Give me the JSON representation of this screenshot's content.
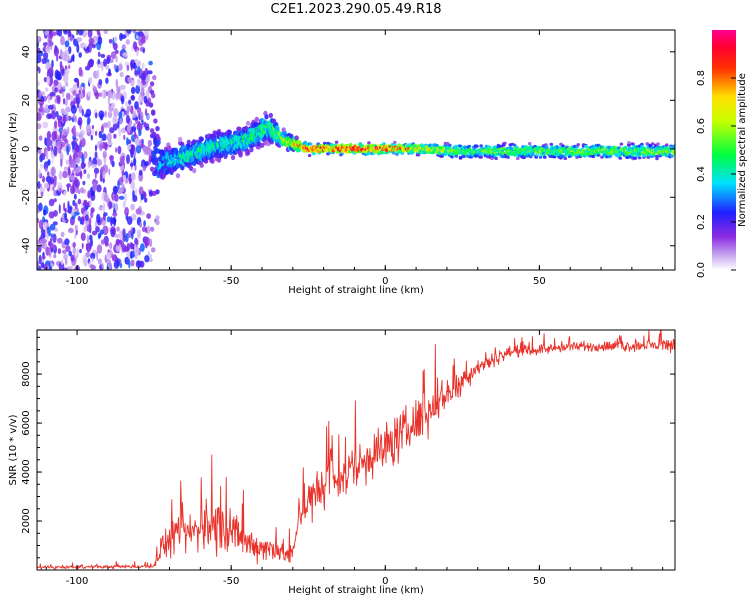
{
  "chart_data": [
    {
      "type": "heatmap",
      "title": "C2E1.2023.290.05.49.R18",
      "xlabel": "Height of straight line (km)",
      "ylabel": "Frequency (Hz)",
      "xlim": [
        -113,
        94
      ],
      "ylim": [
        -50,
        49
      ],
      "xticks": [
        -100,
        -50,
        0,
        50
      ],
      "yticks": [
        -40,
        -20,
        0,
        20,
        40
      ],
      "colorbar": {
        "label": "Normalized spectral amplitude",
        "range": [
          0,
          1
        ],
        "ticks": [
          0.0,
          0.2,
          0.4,
          0.6,
          0.8
        ],
        "colormap": "rainbow (white-purple-blue-cyan-green-yellow-red-magenta)"
      },
      "ridge": [
        {
          "x": -113,
          "y": 0,
          "amp": 0.15,
          "spread": 45
        },
        {
          "x": -76,
          "y": 0,
          "amp": 0.2,
          "spread": 40
        },
        {
          "x": -73,
          "y": -6,
          "amp": 0.35,
          "spread": 5
        },
        {
          "x": -65,
          "y": -3,
          "amp": 0.45,
          "spread": 4
        },
        {
          "x": -55,
          "y": 1,
          "amp": 0.45,
          "spread": 4
        },
        {
          "x": -45,
          "y": 4,
          "amp": 0.45,
          "spread": 4
        },
        {
          "x": -38,
          "y": 9,
          "amp": 0.5,
          "spread": 4
        },
        {
          "x": -32,
          "y": 3,
          "amp": 0.7,
          "spread": 2
        },
        {
          "x": -25,
          "y": 0,
          "amp": 0.9,
          "spread": 1.5
        },
        {
          "x": 0,
          "y": 0,
          "amp": 0.95,
          "spread": 1.5
        },
        {
          "x": 10,
          "y": 0,
          "amp": 0.75,
          "spread": 1.5
        },
        {
          "x": 25,
          "y": -1,
          "amp": 0.55,
          "spread": 2
        },
        {
          "x": 94,
          "y": -1,
          "amp": 0.6,
          "spread": 2
        }
      ]
    },
    {
      "type": "line",
      "title": "",
      "xlabel": "Height of straight line (km)",
      "ylabel": "SNR (10 * v/v)",
      "xlim": [
        -113,
        94
      ],
      "ylim": [
        0,
        9800
      ],
      "xticks": [
        -100,
        -50,
        0,
        50
      ],
      "yticks": [
        2000,
        4000,
        6000,
        8000
      ],
      "color": "#e8322a",
      "trend": [
        {
          "x": -113,
          "y": 100,
          "noise": 80
        },
        {
          "x": -75,
          "y": 150,
          "noise": 100
        },
        {
          "x": -72,
          "y": 1100,
          "noise": 800
        },
        {
          "x": -60,
          "y": 1700,
          "noise": 1300
        },
        {
          "x": -55,
          "y": 1900,
          "noise": 1500
        },
        {
          "x": -45,
          "y": 1100,
          "noise": 900
        },
        {
          "x": -35,
          "y": 800,
          "noise": 700
        },
        {
          "x": -30,
          "y": 600,
          "noise": 500
        },
        {
          "x": -28,
          "y": 2400,
          "noise": 1200
        },
        {
          "x": -20,
          "y": 3300,
          "noise": 1400
        },
        {
          "x": -10,
          "y": 4200,
          "noise": 1400
        },
        {
          "x": 0,
          "y": 5000,
          "noise": 1400
        },
        {
          "x": 10,
          "y": 6000,
          "noise": 1300
        },
        {
          "x": 20,
          "y": 7200,
          "noise": 900
        },
        {
          "x": 30,
          "y": 8300,
          "noise": 500
        },
        {
          "x": 40,
          "y": 8900,
          "noise": 300
        },
        {
          "x": 60,
          "y": 9100,
          "noise": 250
        },
        {
          "x": 80,
          "y": 9150,
          "noise": 300
        },
        {
          "x": 94,
          "y": 9200,
          "noise": 400
        }
      ]
    }
  ]
}
